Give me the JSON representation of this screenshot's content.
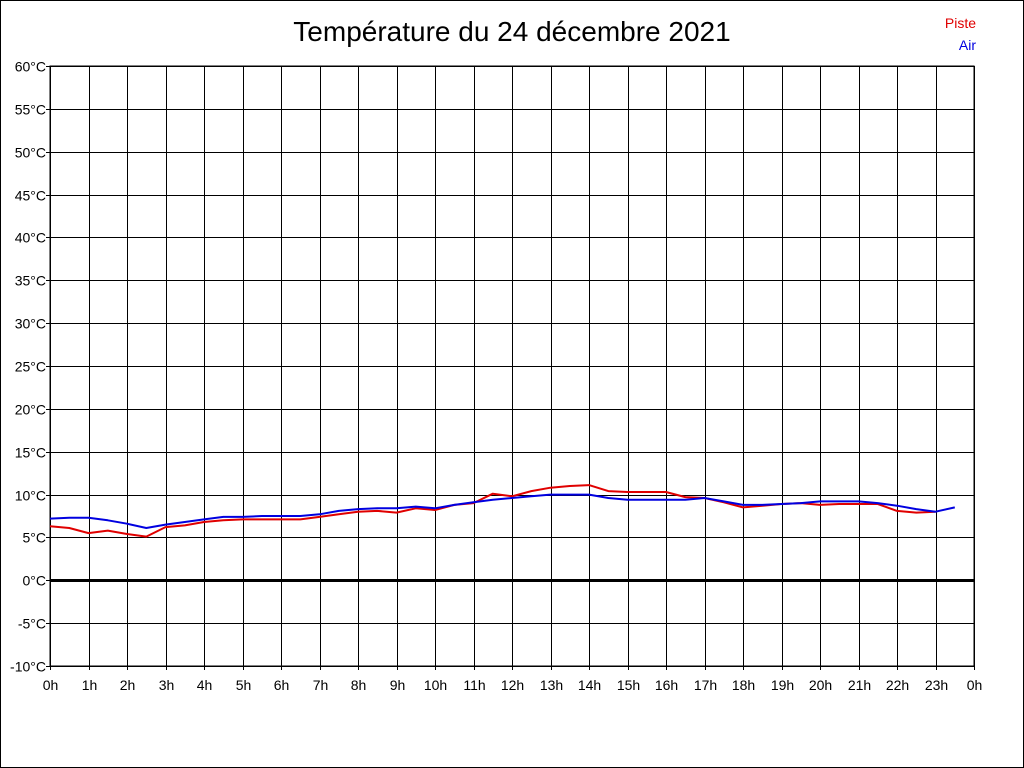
{
  "chart_data": {
    "type": "line",
    "title": "Température du 24 décembre 2021",
    "ylim": [
      -10,
      60
    ],
    "xlim": [
      0,
      24
    ],
    "y_ticks": [
      "-10°C",
      "-5°C",
      "0°C",
      "5°C",
      "10°C",
      "15°C",
      "20°C",
      "25°C",
      "30°C",
      "35°C",
      "40°C",
      "45°C",
      "50°C",
      "55°C",
      "60°C"
    ],
    "x_ticks": [
      "0h",
      "1h",
      "2h",
      "3h",
      "4h",
      "5h",
      "6h",
      "7h",
      "8h",
      "9h",
      "10h",
      "11h",
      "12h",
      "13h",
      "14h",
      "15h",
      "16h",
      "17h",
      "18h",
      "19h",
      "20h",
      "21h",
      "22h",
      "23h",
      "0h"
    ],
    "grid": true,
    "legend_position": "top-right",
    "series": [
      {
        "name": "Piste",
        "color": "#e00000",
        "x": [
          0,
          0.5,
          1,
          1.5,
          2,
          2.5,
          3,
          3.5,
          4,
          4.5,
          5,
          5.5,
          6,
          6.5,
          7,
          7.5,
          8,
          8.5,
          9,
          9.5,
          10,
          10.5,
          11,
          11.5,
          12,
          12.5,
          13,
          13.5,
          14,
          14.5,
          15,
          15.5,
          16,
          16.5,
          17,
          17.5,
          18,
          18.5,
          19,
          19.5,
          20,
          20.5,
          21,
          21.5,
          22,
          22.5,
          23
        ],
        "y": [
          6.3,
          6.1,
          5.5,
          5.8,
          5.4,
          5.1,
          6.2,
          6.4,
          6.8,
          7.0,
          7.1,
          7.1,
          7.1,
          7.1,
          7.4,
          7.7,
          8.0,
          8.1,
          7.9,
          8.4,
          8.2,
          8.8,
          9.0,
          10.1,
          9.8,
          10.4,
          10.8,
          11.0,
          11.1,
          10.4,
          10.3,
          10.3,
          10.3,
          9.7,
          9.6,
          9.1,
          8.5,
          8.7,
          8.9,
          9.0,
          8.8,
          8.9,
          8.9,
          8.9,
          8.1,
          7.9,
          8.0
        ]
      },
      {
        "name": "Air",
        "color": "#0000e0",
        "x": [
          0,
          0.5,
          1,
          1.5,
          2,
          2.5,
          3,
          3.5,
          4,
          4.5,
          5,
          5.5,
          6,
          6.5,
          7,
          7.5,
          8,
          8.5,
          9,
          9.5,
          10,
          10.5,
          11,
          11.5,
          12,
          12.5,
          13,
          13.5,
          14,
          14.5,
          15,
          15.5,
          16,
          16.5,
          17,
          17.5,
          18,
          18.5,
          19,
          19.5,
          20,
          20.5,
          21,
          21.5,
          22,
          22.5,
          23,
          23.5
        ],
        "y": [
          7.2,
          7.3,
          7.3,
          7.0,
          6.6,
          6.1,
          6.5,
          6.8,
          7.1,
          7.4,
          7.4,
          7.5,
          7.5,
          7.5,
          7.7,
          8.1,
          8.3,
          8.4,
          8.4,
          8.6,
          8.4,
          8.8,
          9.1,
          9.4,
          9.6,
          9.8,
          10.0,
          10.0,
          10.0,
          9.6,
          9.4,
          9.4,
          9.4,
          9.4,
          9.6,
          9.2,
          8.8,
          8.8,
          8.9,
          9.0,
          9.2,
          9.2,
          9.2,
          9.0,
          8.7,
          8.3,
          8.0,
          8.5
        ]
      }
    ]
  }
}
